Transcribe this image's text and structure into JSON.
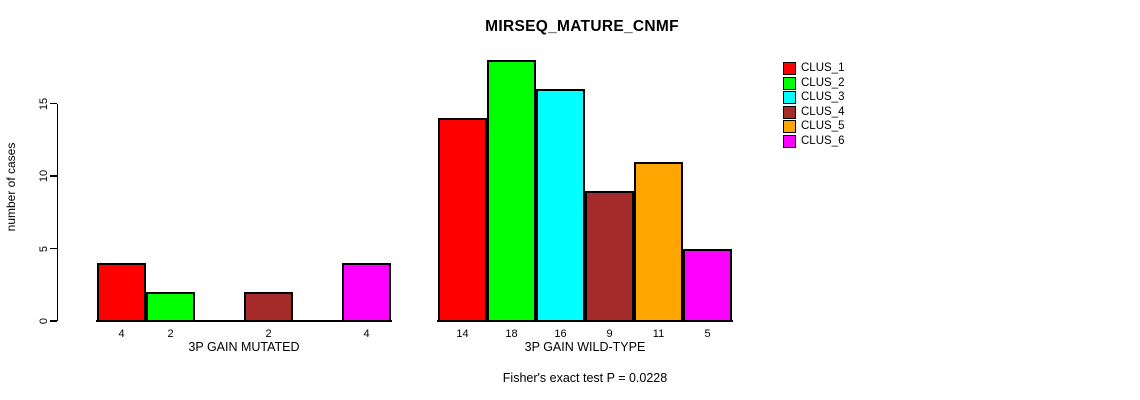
{
  "chart_data": {
    "type": "bar",
    "title": "MIRSEQ_MATURE_CNMF",
    "ylabel": "number of cases",
    "yticks": [
      0,
      5,
      10,
      15
    ],
    "ylim": [
      0,
      18
    ],
    "grid": false,
    "legend_position": "top-right",
    "categories": [
      "3P GAIN MUTATED",
      "3P GAIN WILD-TYPE"
    ],
    "series": [
      {
        "name": "CLUS_1",
        "color": "#ff0000",
        "values": [
          4,
          14
        ]
      },
      {
        "name": "CLUS_2",
        "color": "#00ff00",
        "values": [
          2,
          18
        ]
      },
      {
        "name": "CLUS_3",
        "color": "#00ffff",
        "values": [
          0,
          16
        ]
      },
      {
        "name": "CLUS_4",
        "color": "#a52a2a",
        "values": [
          2,
          9
        ]
      },
      {
        "name": "CLUS_5",
        "color": "#ffa500",
        "values": [
          0,
          11
        ]
      },
      {
        "name": "CLUS_6",
        "color": "#ff00ff",
        "values": [
          4,
          5
        ]
      }
    ],
    "bar_labels": [
      [
        "4",
        "2",
        "",
        "2",
        "",
        "4"
      ],
      [
        "14",
        "18",
        "16",
        "9",
        "11",
        "5"
      ]
    ],
    "footnote": "Fisher's exact test P = 0.0228",
    "axis_color": "#000000",
    "text_color": "#000000",
    "background": "#ffffff"
  }
}
